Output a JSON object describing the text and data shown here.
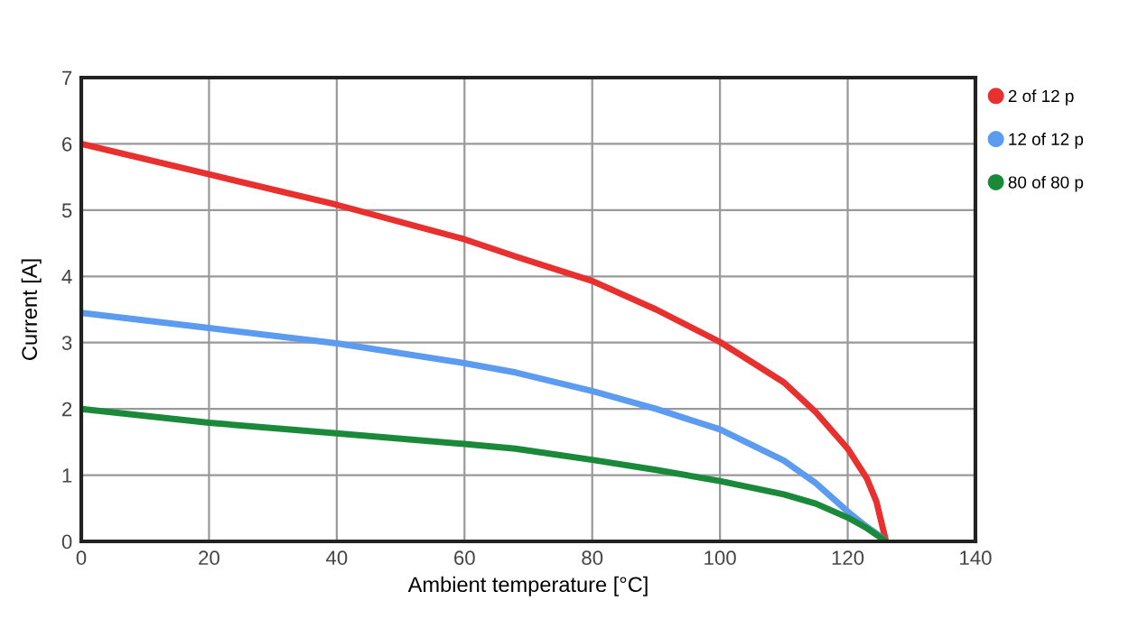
{
  "chart_data": {
    "type": "line",
    "xlabel": "Ambient temperature [°C]",
    "ylabel": "Current [A]",
    "x": [
      0,
      20,
      40,
      60,
      68,
      80,
      90,
      100,
      110,
      115,
      120,
      123,
      124.5,
      126
    ],
    "series": [
      {
        "name": "2 of 12 p",
        "color": "#e8302e",
        "values": [
          6.0,
          5.54,
          5.08,
          4.56,
          4.3,
          3.93,
          3.5,
          3.01,
          2.4,
          1.95,
          1.4,
          0.95,
          0.6,
          0
        ]
      },
      {
        "name": "12 of 12 p",
        "color": "#5b9bf0",
        "values": [
          3.45,
          3.22,
          2.99,
          2.69,
          2.55,
          2.27,
          2.0,
          1.69,
          1.22,
          0.88,
          0.45,
          0.22,
          0.12,
          0
        ]
      },
      {
        "name": "80 of 80 p",
        "color": "#1a8a3a",
        "values": [
          2.0,
          1.79,
          1.63,
          1.47,
          1.4,
          1.23,
          1.08,
          0.91,
          0.71,
          0.57,
          0.36,
          0.2,
          0.1,
          0
        ]
      }
    ],
    "xlim": [
      0,
      140
    ],
    "xticks": [
      0,
      20,
      40,
      60,
      80,
      100,
      120,
      140
    ],
    "ylim": [
      0,
      7
    ],
    "yticks": [
      0,
      1,
      2,
      3,
      4,
      5,
      6,
      7
    ],
    "grid": true,
    "legend": "top right",
    "marker": "none",
    "line_style": "solid"
  }
}
